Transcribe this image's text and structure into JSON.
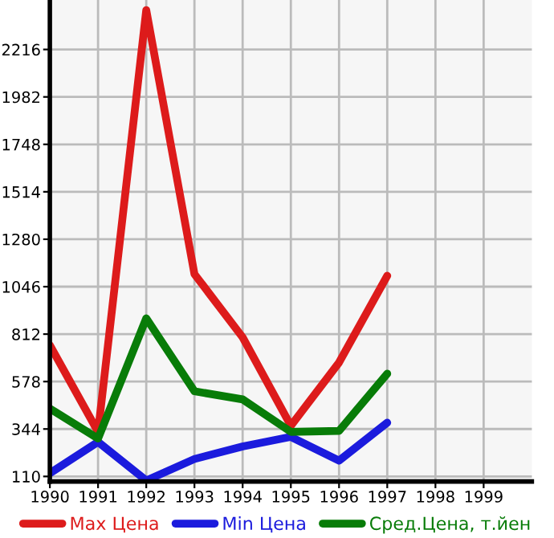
{
  "chart_data": {
    "type": "line",
    "x": [
      1990,
      1991,
      1992,
      1993,
      1994,
      1995,
      1996,
      1997
    ],
    "series": [
      {
        "name": "Max Цена",
        "color": "#dd1b1b",
        "values": [
          757,
          330,
          2410,
          1108,
          796,
          360,
          672,
          1100
        ]
      },
      {
        "name": "Min Цена",
        "color": "#1b1bdd",
        "values": [
          126,
          280,
          90,
          196,
          258,
          305,
          188,
          375
        ]
      },
      {
        "name": "Сред.Цена, т.йен",
        "color": "#087c08",
        "values": [
          445,
          297,
          890,
          530,
          490,
          330,
          335,
          617
        ]
      }
    ],
    "xlim": [
      1990,
      2000
    ],
    "xticks": [
      1990,
      1991,
      1992,
      1993,
      1994,
      1995,
      1996,
      1997,
      1998,
      1999
    ],
    "ylim": [
      85,
      2460
    ],
    "yticks": [
      110,
      344,
      578,
      812,
      1046,
      1280,
      1514,
      1748,
      1982,
      2216
    ],
    "grid": true,
    "legend": "bottom",
    "marker": "none",
    "line_style": "solid"
  }
}
